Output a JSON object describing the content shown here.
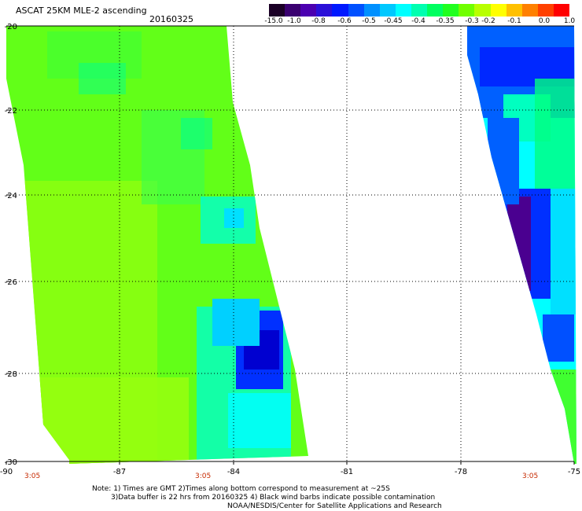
{
  "header": {
    "title": "ASCAT 25KM MLE-2 ascending",
    "date": "20160325"
  },
  "colorbar": {
    "colors": [
      "#1a0026",
      "#3a0070",
      "#4b00b0",
      "#2a10d8",
      "#0018ff",
      "#0050ff",
      "#0090ff",
      "#00c8ff",
      "#00ffff",
      "#00ffb0",
      "#00ff60",
      "#20ff20",
      "#70ff00",
      "#b8ff00",
      "#ffff00",
      "#ffc000",
      "#ff8000",
      "#ff4000",
      "#ff0000"
    ],
    "tick_labels": [
      "-15.0",
      "-1.0",
      "-0.8",
      "-0.6",
      "-0.5",
      "-0.45",
      "-0.4",
      "-0.35",
      "-0.3",
      "-0.2",
      "-0.1",
      "0.0",
      "1.0"
    ]
  },
  "map": {
    "lon_ticks": [
      "-90",
      "-87",
      "-84",
      "-81",
      "-78",
      "-75"
    ],
    "lat_ticks": [
      "-20",
      "-22",
      "-24",
      "-26",
      "-28",
      "-30"
    ],
    "pass_times": [
      "3:05",
      "3:05",
      "3:05"
    ],
    "colors": {
      "green": "#5fff1a",
      "yellowgreen": "#90ff10",
      "cyan": "#00ffff",
      "teal": "#00ffb4",
      "blue": "#0030ff",
      "deepblue": "#0000d0",
      "purple": "#4a0090",
      "gridline": "#000000"
    }
  },
  "notes": {
    "line1": "Note: 1) Times are GMT 2)Times along bottom correspond to measurement at ~25S",
    "line2": "3)Data buffer is 22 hrs from 20160325 4) Black wind barbs indicate possible contamination",
    "line3": "NOAA/NESDIS/Center for Satellite Applications and Research"
  }
}
